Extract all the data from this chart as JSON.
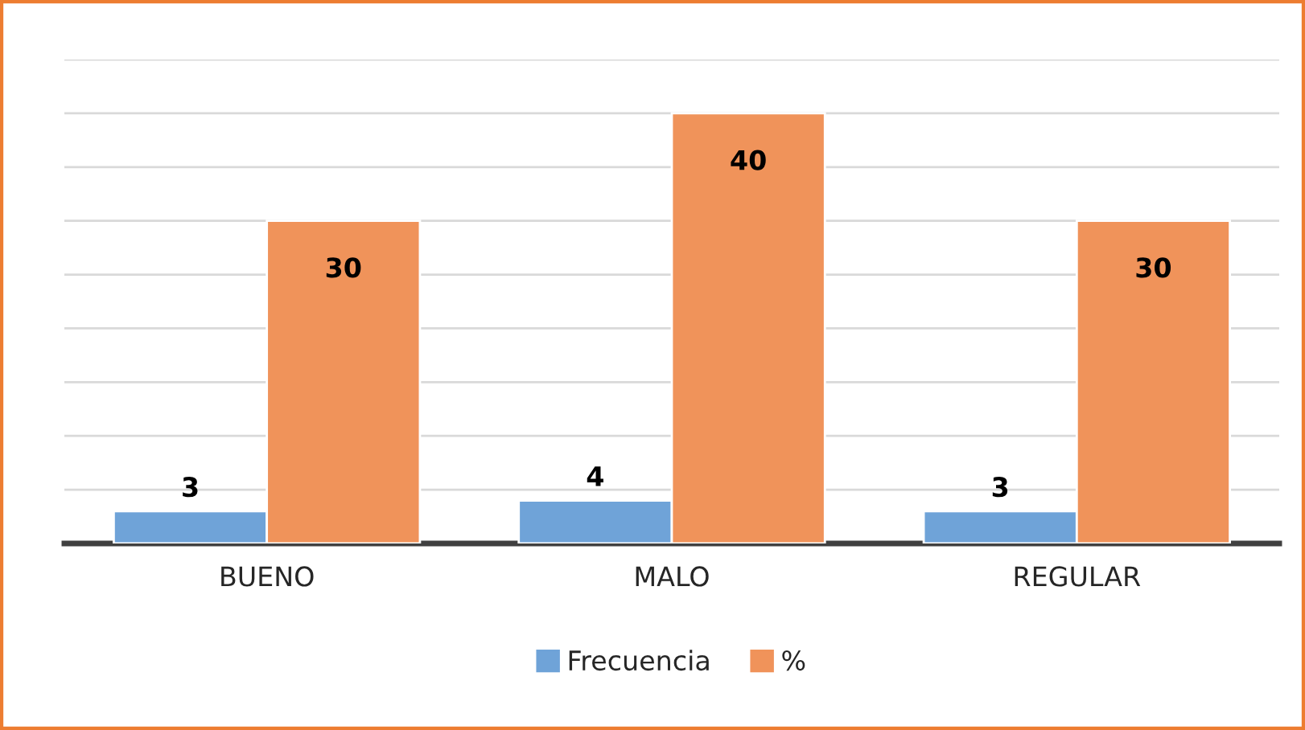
{
  "chart_data": {
    "type": "bar",
    "categories": [
      "BUENO",
      "MALO",
      "REGULAR"
    ],
    "series": [
      {
        "name": "Frecuencia",
        "color": "#6fa3d8",
        "values": [
          3,
          4,
          3
        ]
      },
      {
        "name": "%",
        "color": "#f0935a",
        "values": [
          30,
          40,
          30
        ]
      }
    ],
    "ylim": [
      0,
      45
    ],
    "yticks": [
      {
        "value": 0,
        "label": null
      },
      {
        "value": 5,
        "label": null
      },
      {
        "value": 10,
        "label": null
      },
      {
        "value": 15,
        "label": null
      },
      {
        "value": 20,
        "label": null
      },
      {
        "value": 25,
        "label": null
      },
      {
        "value": 30,
        "label": null
      },
      {
        "value": 35,
        "label": null
      },
      {
        "value": 40,
        "label": null
      },
      {
        "value": 45,
        "label": null
      }
    ],
    "grid": "y",
    "legend": "bottom",
    "data_labels": true,
    "tick_labels": "x"
  }
}
